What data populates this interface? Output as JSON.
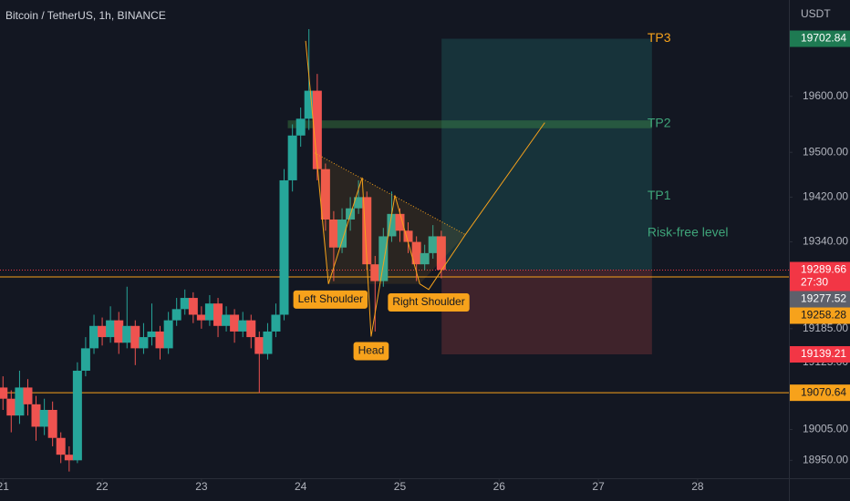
{
  "chart_data": {
    "type": "candlestick",
    "title": "Bitcoin / TetherUS, 1h, BINANCE",
    "y_unit": "USDT",
    "xlim": [
      20.97,
      28.92
    ],
    "xticks": [
      21,
      22,
      23,
      24,
      25,
      26,
      27,
      28
    ],
    "ylim": [
      18918,
      19772
    ],
    "yticks": [
      {
        "value": 19600,
        "label": "19600.00"
      },
      {
        "value": 19500,
        "label": "19500.00"
      },
      {
        "value": 19420,
        "label": "19420.00"
      },
      {
        "value": 19340,
        "label": "19340.00"
      },
      {
        "value": 19185,
        "label": "19185.00"
      },
      {
        "value": 19125,
        "label": "19125.00"
      },
      {
        "value": 19005,
        "label": "19005.00"
      },
      {
        "value": 18950,
        "label": "18950.00"
      }
    ],
    "up_color": "#26a69a",
    "down_color": "#ef5350",
    "x": [
      21,
      21.083,
      21.167,
      21.25,
      21.333,
      21.417,
      21.5,
      21.583,
      21.667,
      21.75,
      21.833,
      21.917,
      22,
      22.083,
      22.167,
      22.25,
      22.333,
      22.417,
      22.5,
      22.583,
      22.667,
      22.75,
      22.833,
      22.917,
      23,
      23.083,
      23.167,
      23.25,
      23.333,
      23.417,
      23.5,
      23.583,
      23.667,
      23.75,
      23.833,
      23.917,
      24,
      24.083,
      24.167,
      24.25,
      24.333,
      24.417,
      24.5,
      24.583,
      24.667,
      24.75,
      24.833,
      24.917,
      25,
      25.083,
      25.167,
      25.25,
      25.333,
      25.417
    ],
    "open": [
      19080,
      19060,
      19030,
      19080,
      19050,
      19010,
      19040,
      18990,
      18960,
      18950,
      19110,
      19150,
      19190,
      19170,
      19200,
      19160,
      19190,
      19150,
      19170,
      19180,
      19150,
      19200,
      19220,
      19240,
      19210,
      19200,
      19230,
      19190,
      19210,
      19180,
      19200,
      19170,
      19140,
      19180,
      19210,
      19450,
      19530,
      19560,
      19610,
      19470,
      19380,
      19330,
      19380,
      19400,
      19420,
      19300,
      19270,
      19350,
      19390,
      19360,
      19340,
      19300,
      19320,
      19350
    ],
    "high": [
      19100,
      19075,
      19110,
      19095,
      19065,
      19060,
      19055,
      19000,
      18975,
      19125,
      19170,
      19210,
      19205,
      19225,
      19215,
      19260,
      19200,
      19195,
      19230,
      19190,
      19215,
      19240,
      19255,
      19250,
      19225,
      19245,
      19240,
      19225,
      19220,
      19215,
      19210,
      19180,
      19195,
      19230,
      19470,
      19550,
      19580,
      19720,
      19640,
      19480,
      19395,
      19400,
      19420,
      19450,
      19430,
      19315,
      19365,
      19430,
      19400,
      19375,
      19350,
      19335,
      19370,
      19360
    ],
    "low": [
      19040,
      19000,
      19015,
      19030,
      18985,
      18995,
      18975,
      18945,
      18930,
      18945,
      19100,
      19140,
      19155,
      19160,
      19140,
      19150,
      19120,
      19140,
      19155,
      19130,
      19140,
      19190,
      19210,
      19195,
      19185,
      19190,
      19170,
      19180,
      19160,
      19170,
      19150,
      19070,
      19130,
      19170,
      19200,
      19430,
      19510,
      19540,
      19450,
      19360,
      19270,
      19320,
      19360,
      19390,
      19290,
      19180,
      19260,
      19340,
      19340,
      19320,
      19270,
      19290,
      19310,
      19275
    ],
    "close": [
      19060,
      19030,
      19080,
      19050,
      19010,
      19040,
      18990,
      18960,
      18950,
      19110,
      19150,
      19190,
      19170,
      19200,
      19160,
      19190,
      19150,
      19170,
      19180,
      19150,
      19200,
      19220,
      19240,
      19210,
      19200,
      19230,
      19190,
      19210,
      19180,
      19200,
      19170,
      19140,
      19180,
      19210,
      19450,
      19530,
      19560,
      19610,
      19470,
      19380,
      19330,
      19380,
      19400,
      19420,
      19300,
      19270,
      19350,
      19390,
      19360,
      19340,
      19300,
      19320,
      19350,
      19290
    ],
    "position": {
      "x": [
        25.42,
        27.54
      ],
      "target": 19702.84,
      "entry": 19289.66,
      "stop": 19139.21
    },
    "zone": {
      "x": [
        23.87,
        27.54
      ],
      "low": 19543,
      "high": 19557
    },
    "hlines": [
      {
        "value": 19289.66,
        "color": "#f23645",
        "style": "dotted"
      },
      {
        "value": 19277.52,
        "color": "#f7a21b",
        "style": "solid"
      },
      {
        "value": 19070.64,
        "color": "#f7a21b",
        "style": "solid"
      }
    ],
    "levels": [
      {
        "label": "TP3",
        "value": 19702.84,
        "color": "#f7a21b"
      },
      {
        "label": "TP2",
        "value": 19551,
        "color": "#3fa57a"
      },
      {
        "label": "TP1",
        "value": 19422,
        "color": "#3fa57a"
      },
      {
        "label": "Risk-free level",
        "value": 19356,
        "color": "#3fa57a"
      }
    ],
    "pattern": {
      "color": "#f7a21b",
      "x": [
        24.05,
        24.28,
        24.62,
        24.71,
        24.95,
        25.2,
        25.29,
        25.66,
        26.46
      ],
      "y": [
        19699,
        19265,
        19455,
        19171,
        19423,
        19265,
        19255,
        19353,
        19553
      ]
    },
    "neckline": {
      "x": [
        24.14,
        25.66
      ],
      "y": [
        19499,
        19353
      ]
    },
    "pattern_labels": [
      {
        "label": "Left Shoulder",
        "x": 24.3,
        "y": 19237
      },
      {
        "label": "Head",
        "x": 24.71,
        "y": 19145
      },
      {
        "label": "Right Shoulder",
        "x": 25.29,
        "y": 19232
      }
    ],
    "badges": [
      {
        "value": 19702.84,
        "color": "#1e7a52",
        "text_color": "#ffffff"
      },
      {
        "value": 19289.66,
        "color": "#f23645",
        "text_color": "#ffffff",
        "countdown": "27:30"
      },
      {
        "value": 19277.52,
        "color": "#5d606b",
        "text_color": "#ffffff"
      },
      {
        "value": 19258.28,
        "color": "#f7a21b",
        "text_color": "#131722"
      },
      {
        "value": 19139.21,
        "color": "#f23645",
        "text_color": "#ffffff"
      },
      {
        "value": 19070.64,
        "color": "#f7a21b",
        "text_color": "#131722"
      }
    ]
  }
}
